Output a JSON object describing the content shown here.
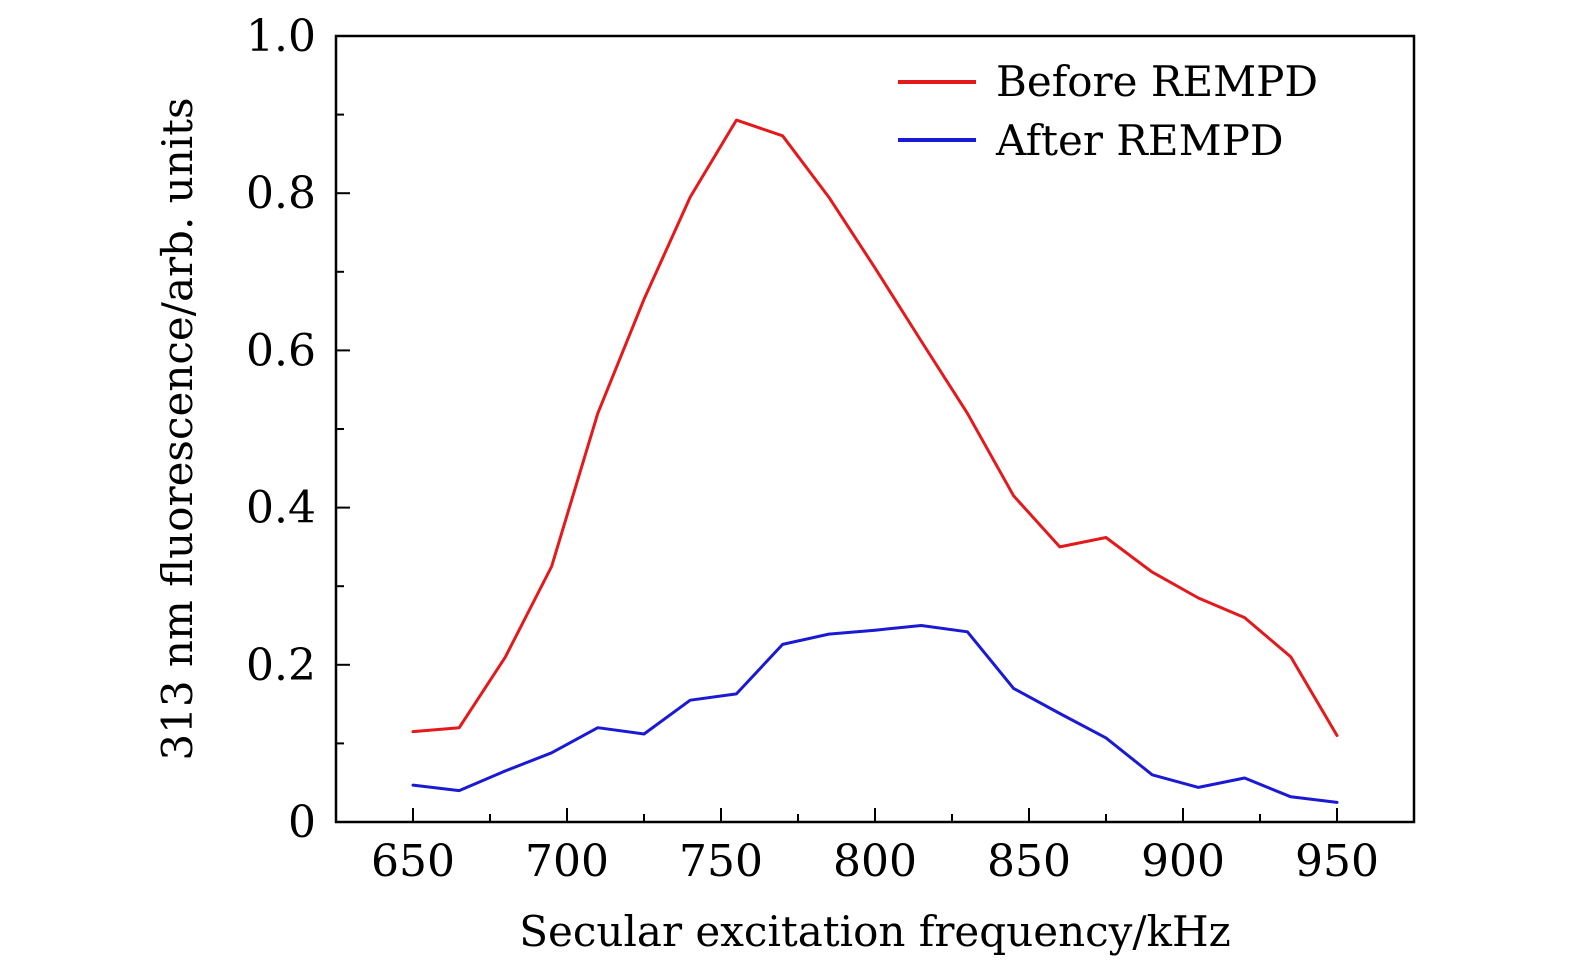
{
  "chart_data": {
    "type": "line",
    "title": "",
    "xlabel": "Secular excitation frequency/kHz",
    "ylabel": "313 nm fluorescence/arb. units",
    "xlim": [
      625,
      975
    ],
    "ylim": [
      0,
      1.0
    ],
    "x_ticks": [
      650,
      700,
      750,
      800,
      850,
      900,
      950
    ],
    "x_tick_labels": [
      "650",
      "700",
      "750",
      "800",
      "850",
      "900",
      "950"
    ],
    "y_ticks": [
      0,
      0.2,
      0.4,
      0.6,
      0.8,
      1.0
    ],
    "y_tick_labels": [
      "0",
      "0.2",
      "0.4",
      "0.6",
      "0.8",
      "1.0"
    ],
    "legend_position": "top-right",
    "grid": false,
    "x": [
      650,
      665,
      680,
      695,
      710,
      725,
      740,
      755,
      770,
      785,
      800,
      815,
      830,
      845,
      860,
      875,
      890,
      905,
      920,
      935,
      950
    ],
    "series": [
      {
        "name": "Before REMPD",
        "color": "#e3191c",
        "values": [
          0.115,
          0.12,
          0.21,
          0.325,
          0.52,
          0.665,
          0.795,
          0.893,
          0.873,
          0.795,
          0.705,
          0.612,
          0.52,
          0.415,
          0.35,
          0.362,
          0.318,
          0.285,
          0.26,
          0.21,
          0.11
        ]
      },
      {
        "name": "After REMPD",
        "color": "#1a1ad4",
        "values": [
          0.047,
          0.04,
          0.065,
          0.088,
          0.12,
          0.112,
          0.155,
          0.163,
          0.226,
          0.239,
          0.244,
          0.25,
          0.242,
          0.17,
          0.138,
          0.107,
          0.06,
          0.044,
          0.056,
          0.032,
          0.025
        ]
      }
    ]
  }
}
